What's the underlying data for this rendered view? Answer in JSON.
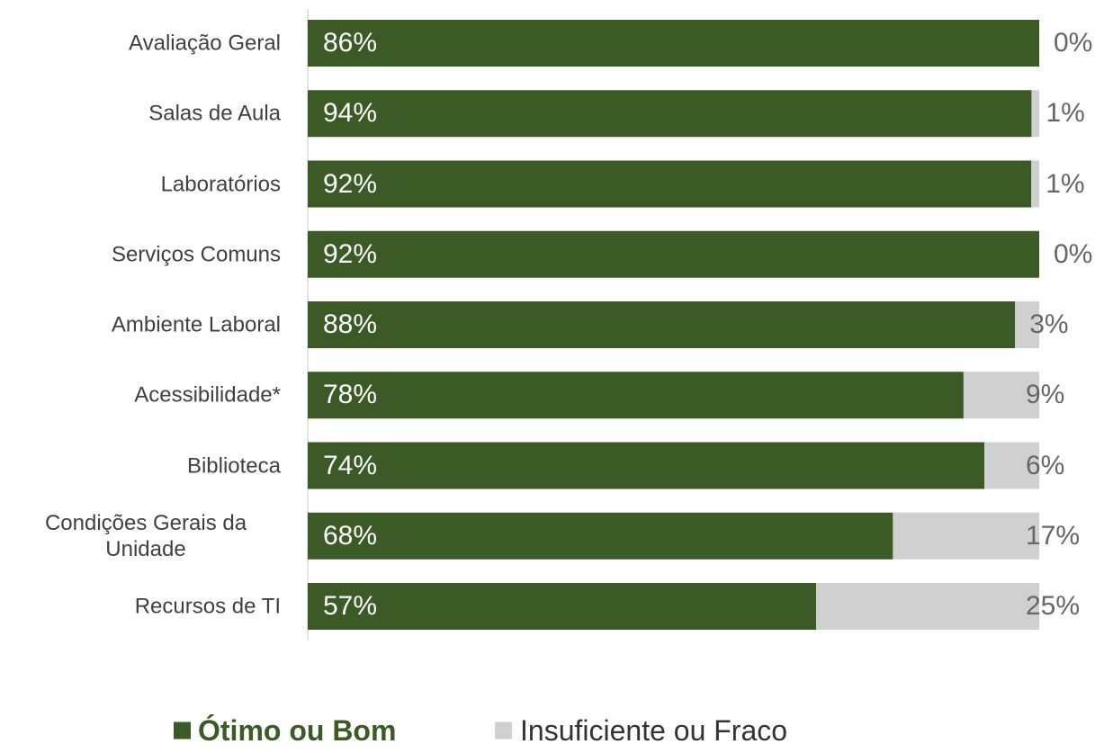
{
  "chart_data": {
    "type": "bar",
    "orientation": "horizontal",
    "stacked": "percent",
    "categories": [
      "Avaliação Geral",
      "Salas de Aula",
      "Laboratórios",
      "Serviços Comuns",
      "Ambiente Laboral",
      "Acessibilidade*",
      "Biblioteca",
      "Condições Gerais da Unidade",
      "Recursos de TI"
    ],
    "series": [
      {
        "name": "Ótimo ou Bom",
        "color": "#3b5a26",
        "values": [
          86,
          94,
          92,
          92,
          88,
          78,
          74,
          68,
          57
        ],
        "value_labels": [
          "86%",
          "94%",
          "92%",
          "92%",
          "88%",
          "78%",
          "74%",
          "68%",
          "57%"
        ]
      },
      {
        "name": "Insuficiente ou Fraco",
        "color": "#d0d0d0",
        "values": [
          0,
          1,
          1,
          0,
          3,
          9,
          6,
          17,
          25
        ],
        "value_labels": [
          "0%",
          "1%",
          "1%",
          "0%",
          "3%",
          "9%",
          "6%",
          "17%",
          "25%"
        ]
      }
    ],
    "legend": "bottom"
  }
}
